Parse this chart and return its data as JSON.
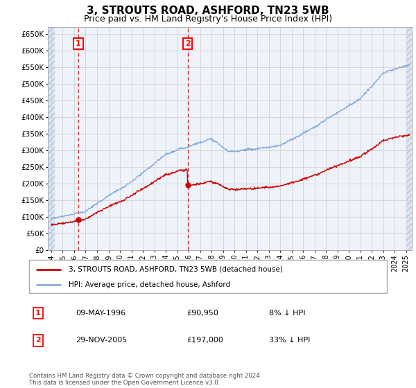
{
  "title": "3, STROUTS ROAD, ASHFORD, TN23 5WB",
  "subtitle": "Price paid vs. HM Land Registry's House Price Index (HPI)",
  "ylim": [
    0,
    670000
  ],
  "yticks": [
    0,
    50000,
    100000,
    150000,
    200000,
    250000,
    300000,
    350000,
    400000,
    450000,
    500000,
    550000,
    600000,
    650000
  ],
  "xlim_start": 1993.7,
  "xlim_end": 2025.5,
  "hpi_color": "#88aadd",
  "price_color": "#cc0000",
  "vline_color": "#cc0000",
  "purchase1_year": 1996.36,
  "purchase1_price": 90950,
  "purchase1_date": "09-MAY-1996",
  "purchase1_note": "8% ↓ HPI",
  "purchase2_year": 2005.91,
  "purchase2_price": 197000,
  "purchase2_date": "29-NOV-2005",
  "purchase2_note": "33% ↓ HPI",
  "legend_property": "3, STROUTS ROAD, ASHFORD, TN23 5WB (detached house)",
  "legend_hpi": "HPI: Average price, detached house, Ashford",
  "footnote": "Contains HM Land Registry data © Crown copyright and database right 2024.\nThis data is licensed under the Open Government Licence v3.0.",
  "hatch_color": "#dce6f5",
  "grid_color": "#cccccc",
  "title_fontsize": 11,
  "subtitle_fontsize": 9
}
